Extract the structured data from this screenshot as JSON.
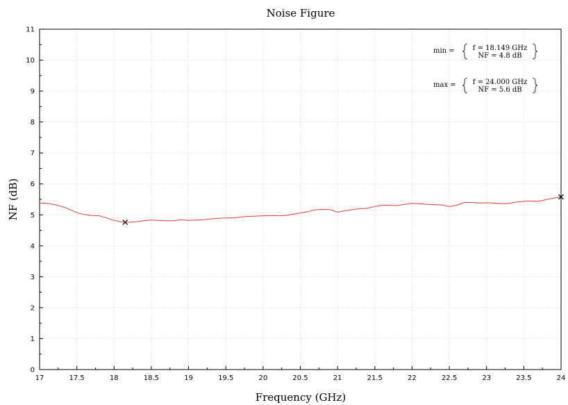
{
  "chart_data": {
    "type": "line",
    "title": "Noise Figure",
    "xlabel": "Frequency (GHz)",
    "ylabel": "NF (dB)",
    "xlim": [
      17,
      24
    ],
    "ylim": [
      0,
      11
    ],
    "x_ticks": [
      "17",
      "17.5",
      "18",
      "18.5",
      "19",
      "19.5",
      "20",
      "20.5",
      "21",
      "21.5",
      "22",
      "22.5",
      "23",
      "23.5",
      "24"
    ],
    "y_ticks": [
      "0",
      "1",
      "2",
      "3",
      "4",
      "5",
      "6",
      "7",
      "8",
      "9",
      "10",
      "11"
    ],
    "grid": true,
    "line_color": "#e8393c",
    "marker_color": "#000000",
    "series": [
      {
        "x": [
          17.0,
          17.1,
          17.2,
          17.3,
          17.4,
          17.5,
          17.6,
          17.7,
          17.8,
          17.9,
          18.0,
          18.1,
          18.149,
          18.2,
          18.3,
          18.4,
          18.5,
          18.6,
          18.7,
          18.8,
          18.9,
          19.0,
          19.1,
          19.2,
          19.3,
          19.4,
          19.5,
          19.6,
          19.7,
          19.8,
          19.9,
          20.0,
          20.1,
          20.2,
          20.3,
          20.4,
          20.5,
          20.6,
          20.7,
          20.8,
          20.9,
          21.0,
          21.1,
          21.2,
          21.3,
          21.4,
          21.5,
          21.6,
          21.7,
          21.8,
          21.9,
          22.0,
          22.1,
          22.2,
          22.3,
          22.4,
          22.5,
          22.6,
          22.7,
          22.8,
          22.9,
          23.0,
          23.1,
          23.2,
          23.3,
          23.4,
          23.5,
          23.6,
          23.7,
          23.8,
          23.9,
          24.0
        ],
        "y": [
          5.38,
          5.37,
          5.33,
          5.27,
          5.18,
          5.07,
          5.01,
          4.98,
          4.97,
          4.9,
          4.82,
          4.77,
          4.76,
          4.76,
          4.78,
          4.81,
          4.83,
          4.82,
          4.81,
          4.81,
          4.84,
          4.82,
          4.83,
          4.84,
          4.87,
          4.89,
          4.9,
          4.9,
          4.93,
          4.95,
          4.96,
          4.97,
          4.98,
          4.97,
          4.98,
          5.02,
          5.06,
          5.1,
          5.16,
          5.18,
          5.17,
          5.09,
          5.13,
          5.17,
          5.2,
          5.21,
          5.27,
          5.31,
          5.31,
          5.3,
          5.34,
          5.37,
          5.36,
          5.34,
          5.33,
          5.32,
          5.27,
          5.31,
          5.4,
          5.4,
          5.38,
          5.39,
          5.38,
          5.36,
          5.37,
          5.41,
          5.44,
          5.45,
          5.44,
          5.49,
          5.54,
          5.58
        ]
      }
    ],
    "markers": [
      {
        "label": "min",
        "x": 18.149,
        "y": 4.76
      },
      {
        "label": "max",
        "x": 24.0,
        "y": 5.58
      }
    ],
    "annotations": {
      "min_label": "min =",
      "min_f": "f = 18.149 GHz",
      "min_nf": "NF = 4.8 dB",
      "max_label": "max =",
      "max_f": "f = 24.000 GHz",
      "max_nf": "NF = 5.6 dB"
    }
  }
}
